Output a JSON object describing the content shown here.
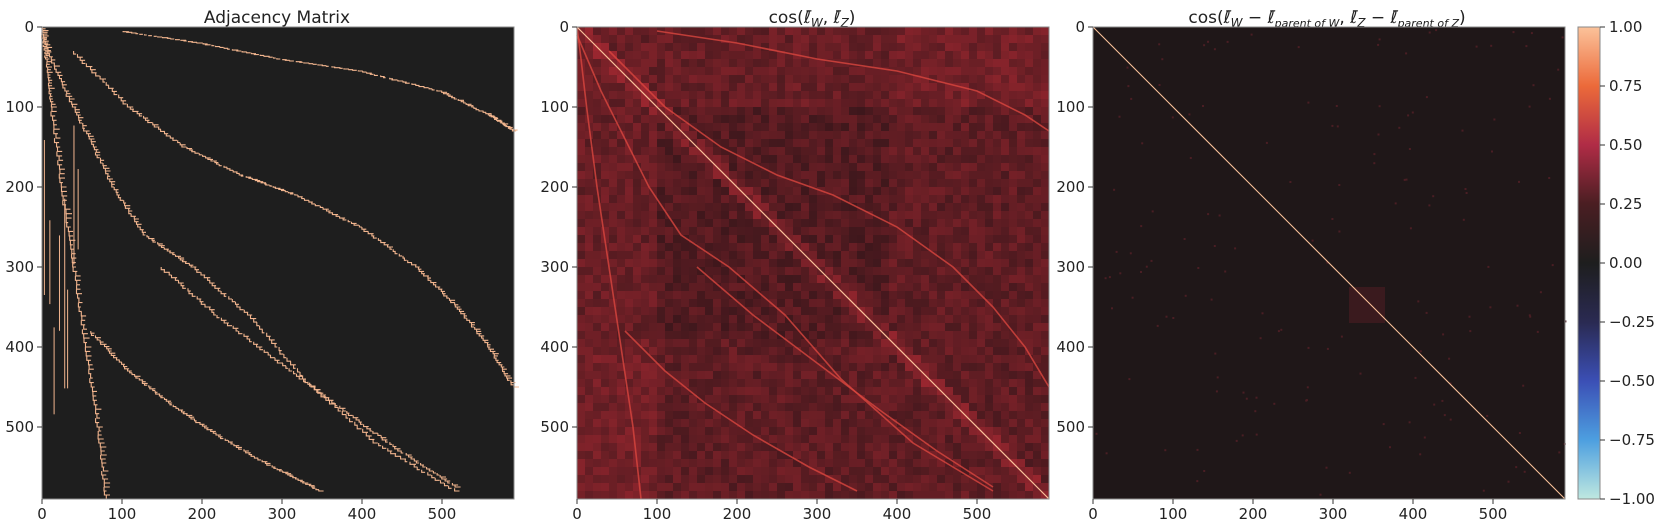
{
  "chart_data": [
    {
      "type": "heatmap",
      "title": "Adjacency Matrix",
      "matrix_size": 590,
      "xlim": [
        0,
        590
      ],
      "ylim": [
        590,
        0
      ],
      "xticks": [
        "0",
        "100",
        "200",
        "300",
        "400",
        "500"
      ],
      "yticks": [
        "0",
        "100",
        "200",
        "300",
        "400",
        "500"
      ],
      "values": "binary",
      "ones_curves": [
        {
          "points": [
            [
              0,
              0
            ],
            [
              5,
              40
            ],
            [
              12,
              100
            ],
            [
              25,
              200
            ],
            [
              40,
              300
            ],
            [
              55,
              400
            ],
            [
              70,
              500
            ],
            [
              80,
              590
            ]
          ]
        },
        {
          "points": [
            [
              0,
              10
            ],
            [
              30,
              80
            ],
            [
              60,
              140
            ],
            [
              90,
              200
            ],
            [
              130,
              260
            ],
            [
              190,
              300
            ],
            [
              260,
              360
            ],
            [
              330,
              440
            ],
            [
              420,
              520
            ],
            [
              520,
              580
            ]
          ]
        },
        {
          "points": [
            [
              40,
              30
            ],
            [
              110,
              100
            ],
            [
              180,
              150
            ],
            [
              250,
              185
            ],
            [
              320,
              210
            ],
            [
              400,
              250
            ],
            [
              470,
              300
            ],
            [
              520,
              350
            ],
            [
              560,
              400
            ],
            [
              590,
              450
            ]
          ]
        },
        {
          "points": [
            [
              100,
              5
            ],
            [
              200,
              20
            ],
            [
              300,
              40
            ],
            [
              400,
              55
            ],
            [
              500,
              80
            ],
            [
              560,
              110
            ],
            [
              590,
              130
            ]
          ]
        },
        {
          "points": [
            [
              150,
              300
            ],
            [
              220,
              360
            ],
            [
              300,
              420
            ],
            [
              380,
              480
            ],
            [
              450,
              530
            ],
            [
              520,
              575
            ]
          ]
        },
        {
          "points": [
            [
              60,
              380
            ],
            [
              110,
              430
            ],
            [
              160,
              470
            ],
            [
              220,
              510
            ],
            [
              290,
              550
            ],
            [
              350,
              580
            ]
          ]
        }
      ]
    },
    {
      "type": "heatmap",
      "title": "cos(ℓ̄W, ℓ̄Z)",
      "matrix_size": 590,
      "xlim": [
        0,
        590
      ],
      "ylim": [
        590,
        0
      ],
      "xticks": [
        "0",
        "100",
        "200",
        "300",
        "400",
        "500"
      ],
      "yticks": [
        "0",
        "100",
        "200",
        "300",
        "400",
        "500"
      ],
      "diagonal": 1.0,
      "background_mean": 0.1,
      "banding": "rows and columns near 0-100 and 380-590 have higher values (0.2-0.4)",
      "off_diagonal_curves_follow_adjacency": true
    },
    {
      "type": "heatmap",
      "title": "cos(ℓ̄W − ℓ̄parent of W, ℓ̄Z − ℓ̄parent of Z)",
      "matrix_size": 590,
      "xlim": [
        0,
        590
      ],
      "ylim": [
        590,
        0
      ],
      "xticks": [
        "0",
        "100",
        "200",
        "300",
        "400",
        "500"
      ],
      "yticks": [
        "0",
        "100",
        "200",
        "300",
        "400",
        "500"
      ],
      "diagonal": 1.0,
      "background_mean": 0.02,
      "block_near": [
        [
          320,
          360
        ],
        [
          330,
          370
        ]
      ]
    }
  ],
  "colorbar": {
    "vmin": -1.0,
    "vmax": 1.0,
    "ticks": [
      "1.00",
      "0.75",
      "0.50",
      "0.25",
      "0.00",
      "−0.25",
      "−0.50",
      "−0.75",
      "−1.00"
    ],
    "colormap": "icefire",
    "stops": [
      "#bfe8e0",
      "#4d9fe0",
      "#3b4fb5",
      "#2a2a52",
      "#1e1e1e",
      "#4a1e22",
      "#b02c46",
      "#ec6a3a",
      "#fbc29a"
    ]
  }
}
